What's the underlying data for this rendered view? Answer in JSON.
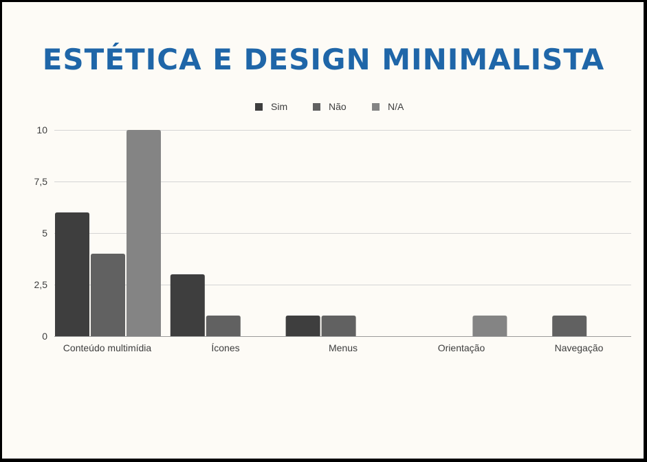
{
  "chart_data": {
    "type": "bar",
    "title": "ESTÉTICA E DESIGN MINIMALISTA",
    "categories": [
      "Conteúdo multimídia",
      "Ícones",
      "Menus",
      "Orientação",
      "Navegação"
    ],
    "series": [
      {
        "name": "Sim",
        "color": "#3e3e3e",
        "values": [
          6,
          3,
          1,
          0,
          0
        ]
      },
      {
        "name": "Não",
        "color": "#616161",
        "values": [
          4,
          1,
          1,
          0,
          1
        ]
      },
      {
        "name": "N/A",
        "color": "#848484",
        "values": [
          10,
          0,
          0,
          1,
          0
        ]
      }
    ],
    "ylim": [
      0,
      10
    ],
    "yticks": [
      0,
      2.5,
      5,
      7.5,
      10
    ],
    "ytick_labels": [
      "0",
      "2,5",
      "5",
      "7,5",
      "10"
    ],
    "grid": true,
    "legend_position": "top-center"
  }
}
